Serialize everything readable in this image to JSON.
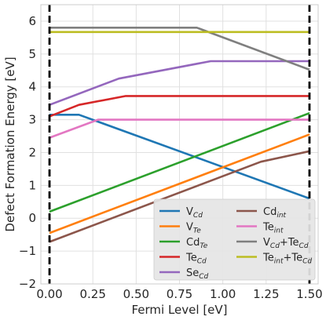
{
  "chart_data": {
    "type": "line",
    "xlabel": "Fermi Level [eV]",
    "ylabel": "Defect Formation Energy [eV]",
    "xlim": [
      -0.05,
      1.55
    ],
    "ylim": [
      -2,
      6.5
    ],
    "xticks": [
      0.0,
      0.25,
      0.5,
      0.75,
      1.0,
      1.25,
      1.5
    ],
    "xtick_labels": [
      "0.00",
      "0.25",
      "0.50",
      "0.75",
      "1.00",
      "1.25",
      "1.50"
    ],
    "yticks": [
      -2,
      -1,
      0,
      1,
      2,
      3,
      4,
      5,
      6
    ],
    "ytick_labels": [
      "−2",
      "−1",
      "0",
      "1",
      "2",
      "3",
      "4",
      "5",
      "6"
    ],
    "grid": true,
    "vlines": [
      0.0,
      1.5
    ],
    "legend_position": "bottom-right",
    "legend_columns": 2,
    "series": [
      {
        "label": {
          "main": "V",
          "sub": "Cd",
          "tail": ""
        },
        "color": "#1f77b4",
        "x": [
          0.0,
          0.17,
          1.5
        ],
        "y": [
          3.15,
          3.15,
          0.6
        ]
      },
      {
        "label": {
          "main": "V",
          "sub": "Te",
          "tail": ""
        },
        "color": "#ff7f0e",
        "x": [
          0.0,
          1.5
        ],
        "y": [
          -0.45,
          2.55
        ]
      },
      {
        "label": {
          "main": "Cd",
          "sub": "Te",
          "tail": ""
        },
        "color": "#2ca02c",
        "x": [
          0.0,
          1.5
        ],
        "y": [
          0.2,
          3.2
        ]
      },
      {
        "label": {
          "main": "Te",
          "sub": "Cd",
          "tail": ""
        },
        "color": "#d62728",
        "x": [
          0.0,
          0.17,
          0.44,
          1.5
        ],
        "y": [
          3.1,
          3.45,
          3.72,
          3.72
        ]
      },
      {
        "label": {
          "main": "Se",
          "sub": "Cd",
          "tail": ""
        },
        "color": "#9467bd",
        "x": [
          0.0,
          0.4,
          0.93,
          1.5
        ],
        "y": [
          3.45,
          4.25,
          4.78,
          4.78
        ]
      },
      {
        "label": {
          "main": "Cd",
          "sub": "int",
          "tail": ""
        },
        "color": "#8c564b",
        "x": [
          0.0,
          1.22,
          1.5
        ],
        "y": [
          -0.72,
          1.72,
          2.04
        ]
      },
      {
        "label": {
          "main": "Te",
          "sub": "int",
          "tail": ""
        },
        "color": "#e377c2",
        "x": [
          0.0,
          0.28,
          1.5
        ],
        "y": [
          2.45,
          3.0,
          3.0
        ]
      },
      {
        "label": {
          "main": "V",
          "sub": "Cd",
          "tail": "+Te",
          "sub2": "Cd"
        },
        "color": "#7f7f7f",
        "x": [
          0.0,
          0.85,
          1.5
        ],
        "y": [
          5.8,
          5.8,
          4.52
        ]
      },
      {
        "label": {
          "main": "Te",
          "sub": "int",
          "tail": "+Te",
          "sub2": "Cd"
        },
        "color": "#bcbd22",
        "x": [
          0.0,
          1.5
        ],
        "y": [
          5.67,
          5.67
        ]
      }
    ]
  }
}
